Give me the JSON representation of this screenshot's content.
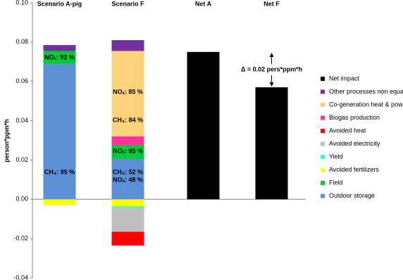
{
  "chart_data": {
    "type": "bar",
    "stacked": true,
    "categories": [
      "Scenario A-pig",
      "Scenario F",
      "Net A",
      "Net F"
    ],
    "y_label": "person*ppm*h",
    "ylim": [
      -0.04,
      0.1
    ],
    "yticks": [
      {
        "value": 0.1,
        "label": "0.10"
      },
      0.08,
      0.06,
      0.04,
      0.02,
      {
        "value": 0,
        "label": "0.00"
      },
      -0.02,
      -0.04
    ],
    "series": [
      {
        "name": "Net impact",
        "color": "#000000",
        "values": [
          null,
          null,
          0.075,
          0.057
        ]
      },
      {
        "name": "Other processes non equal",
        "color": "#7030a0",
        "values": [
          0.003,
          0.0055,
          null,
          null
        ]
      },
      {
        "name": "Co-generation heat & power",
        "color": "#fdd27a",
        "values": [
          null,
          0.0435,
          null,
          null
        ]
      },
      {
        "name": "Biogas production",
        "color": "#ff3399",
        "values": [
          null,
          0.0045,
          null,
          null
        ]
      },
      {
        "name": "Avoided heat",
        "color": "#ff0000",
        "values": [
          null,
          -0.007,
          null,
          null
        ]
      },
      {
        "name": "Avoided electricity",
        "color": "#bfbfbf",
        "values": [
          null,
          -0.012,
          null,
          null
        ]
      },
      {
        "name": "Yield",
        "color": "#33ffcc",
        "values": [
          null,
          -0.001,
          null,
          null
        ]
      },
      {
        "name": "Avoided fertilizers",
        "color": "#ffff00",
        "values": [
          -0.003,
          -0.0035,
          null,
          null
        ]
      },
      {
        "name": "Field",
        "color": "#00cc33",
        "values": [
          0.0065,
          0.007,
          null,
          null
        ]
      },
      {
        "name": "Outdoor storage",
        "color": "#5b8fd6",
        "values": [
          0.069,
          0.0205,
          null,
          null
        ]
      }
    ],
    "annotations": [
      "NOₓ: 92 %",
      "CH₄: 95 %",
      "NOₓ: 85 %",
      "CH₄: 84 %",
      "NOₓ: 95 %",
      "CH₄: 52 %",
      "NOₓ: 48 %",
      "Δ = 0.02 pers*ppm*h"
    ]
  }
}
